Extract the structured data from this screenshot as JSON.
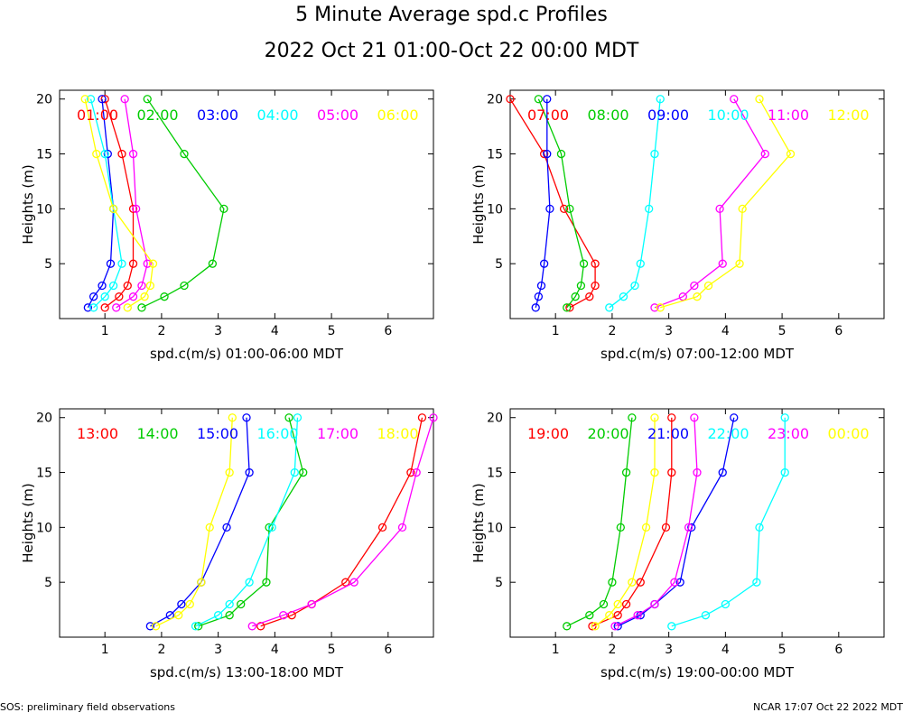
{
  "header": {
    "title": "5 Minute Average spd.c Profiles",
    "subtitle": "2022 Oct 21 01:00-Oct 22 00:00 MDT"
  },
  "footer": {
    "left": "SOS: preliminary field observations",
    "right": "NCAR 17:07 Oct 22 2022 MDT"
  },
  "colors": [
    "#ff0000",
    "#00cc00",
    "#0000ff",
    "#00ffff",
    "#ff00ff",
    "#ffff00"
  ],
  "chart_data": [
    {
      "type": "line",
      "xlabel": "spd.c(m/s) 01:00-06:00 MDT",
      "ylabel": "Heights (m)",
      "xlim": [
        0.2,
        6.8
      ],
      "ylim": [
        0,
        20.8
      ],
      "xticks": [
        "1",
        "2",
        "3",
        "4",
        "5",
        "6"
      ],
      "yticks": [
        "5",
        "10",
        "15",
        "20"
      ],
      "heights": [
        1,
        2,
        3,
        5,
        10,
        15,
        20
      ],
      "series": [
        {
          "name": "01:00",
          "values": [
            1.0,
            1.25,
            1.4,
            1.5,
            1.5,
            1.3,
            1.0
          ]
        },
        {
          "name": "02:00",
          "values": [
            1.65,
            2.05,
            2.4,
            2.9,
            3.1,
            2.4,
            1.75
          ]
        },
        {
          "name": "03:00",
          "values": [
            0.7,
            0.8,
            0.95,
            1.1,
            1.15,
            1.05,
            0.95
          ]
        },
        {
          "name": "04:00",
          "values": [
            0.8,
            1.0,
            1.15,
            1.3,
            1.15,
            1.0,
            0.75
          ]
        },
        {
          "name": "05:00",
          "values": [
            1.2,
            1.5,
            1.65,
            1.75,
            1.55,
            1.5,
            1.35
          ]
        },
        {
          "name": "06:00",
          "values": [
            1.4,
            1.7,
            1.8,
            1.85,
            1.15,
            0.85,
            0.65
          ]
        }
      ]
    },
    {
      "type": "line",
      "xlabel": "spd.c(m/s) 07:00-12:00 MDT",
      "ylabel": "Heights (m)",
      "xlim": [
        0.2,
        6.8
      ],
      "ylim": [
        0,
        20.8
      ],
      "xticks": [
        "1",
        "2",
        "3",
        "4",
        "5",
        "6"
      ],
      "yticks": [
        "5",
        "10",
        "15",
        "20"
      ],
      "heights": [
        1,
        2,
        3,
        5,
        10,
        15,
        20
      ],
      "series": [
        {
          "name": "07:00",
          "values": [
            1.25,
            1.6,
            1.7,
            1.7,
            1.15,
            0.8,
            0.2
          ]
        },
        {
          "name": "08:00",
          "values": [
            1.2,
            1.35,
            1.45,
            1.5,
            1.25,
            1.1,
            0.7
          ]
        },
        {
          "name": "09:00",
          "values": [
            0.65,
            0.7,
            0.75,
            0.8,
            0.9,
            0.85,
            0.85
          ]
        },
        {
          "name": "10:00",
          "values": [
            1.95,
            2.2,
            2.4,
            2.5,
            2.65,
            2.75,
            2.85
          ]
        },
        {
          "name": "11:00",
          "values": [
            2.75,
            3.25,
            3.45,
            3.95,
            3.9,
            4.7,
            4.15
          ]
        },
        {
          "name": "12:00",
          "values": [
            2.85,
            3.5,
            3.7,
            4.25,
            4.3,
            5.15,
            4.6
          ]
        }
      ]
    },
    {
      "type": "line",
      "xlabel": "spd.c(m/s) 13:00-18:00 MDT",
      "ylabel": "Heights (m)",
      "xlim": [
        0.2,
        6.8
      ],
      "ylim": [
        0,
        20.8
      ],
      "xticks": [
        "1",
        "2",
        "3",
        "4",
        "5",
        "6"
      ],
      "yticks": [
        "5",
        "10",
        "15",
        "20"
      ],
      "heights": [
        1,
        2,
        3,
        5,
        10,
        15,
        20
      ],
      "series": [
        {
          "name": "13:00",
          "values": [
            3.75,
            4.3,
            4.65,
            5.25,
            5.9,
            6.4,
            6.6
          ]
        },
        {
          "name": "14:00",
          "values": [
            2.65,
            3.2,
            3.4,
            3.85,
            3.9,
            4.5,
            4.25
          ]
        },
        {
          "name": "15:00",
          "values": [
            1.8,
            2.15,
            2.35,
            2.7,
            3.15,
            3.55,
            3.5
          ]
        },
        {
          "name": "16:00",
          "values": [
            2.6,
            3.0,
            3.2,
            3.55,
            3.95,
            4.35,
            4.4
          ]
        },
        {
          "name": "17:00",
          "values": [
            3.6,
            4.15,
            4.65,
            5.4,
            6.25,
            6.5,
            6.8
          ]
        },
        {
          "name": "18:00",
          "values": [
            1.9,
            2.3,
            2.5,
            2.7,
            2.85,
            3.2,
            3.25
          ]
        }
      ]
    },
    {
      "type": "line",
      "xlabel": "spd.c(m/s) 19:00-00:00 MDT",
      "ylabel": "Heights (m)",
      "xlim": [
        0.2,
        6.8
      ],
      "ylim": [
        0,
        20.8
      ],
      "xticks": [
        "1",
        "2",
        "3",
        "4",
        "5",
        "6"
      ],
      "yticks": [
        "5",
        "10",
        "15",
        "20"
      ],
      "heights": [
        1,
        2,
        3,
        5,
        10,
        15,
        20
      ],
      "series": [
        {
          "name": "19:00",
          "values": [
            1.65,
            2.1,
            2.25,
            2.5,
            2.95,
            3.05,
            3.05
          ]
        },
        {
          "name": "20:00",
          "values": [
            1.2,
            1.6,
            1.85,
            2.0,
            2.15,
            2.25,
            2.35
          ]
        },
        {
          "name": "21:00",
          "values": [
            2.1,
            2.5,
            2.75,
            3.2,
            3.4,
            3.95,
            4.15
          ]
        },
        {
          "name": "22:00",
          "values": [
            3.05,
            3.65,
            4.0,
            4.55,
            4.6,
            5.05,
            5.05
          ]
        },
        {
          "name": "23:00",
          "values": [
            2.05,
            2.45,
            2.75,
            3.1,
            3.35,
            3.5,
            3.45
          ]
        },
        {
          "name": "00:00",
          "values": [
            1.7,
            1.95,
            2.1,
            2.35,
            2.6,
            2.75,
            2.75
          ]
        }
      ]
    }
  ]
}
